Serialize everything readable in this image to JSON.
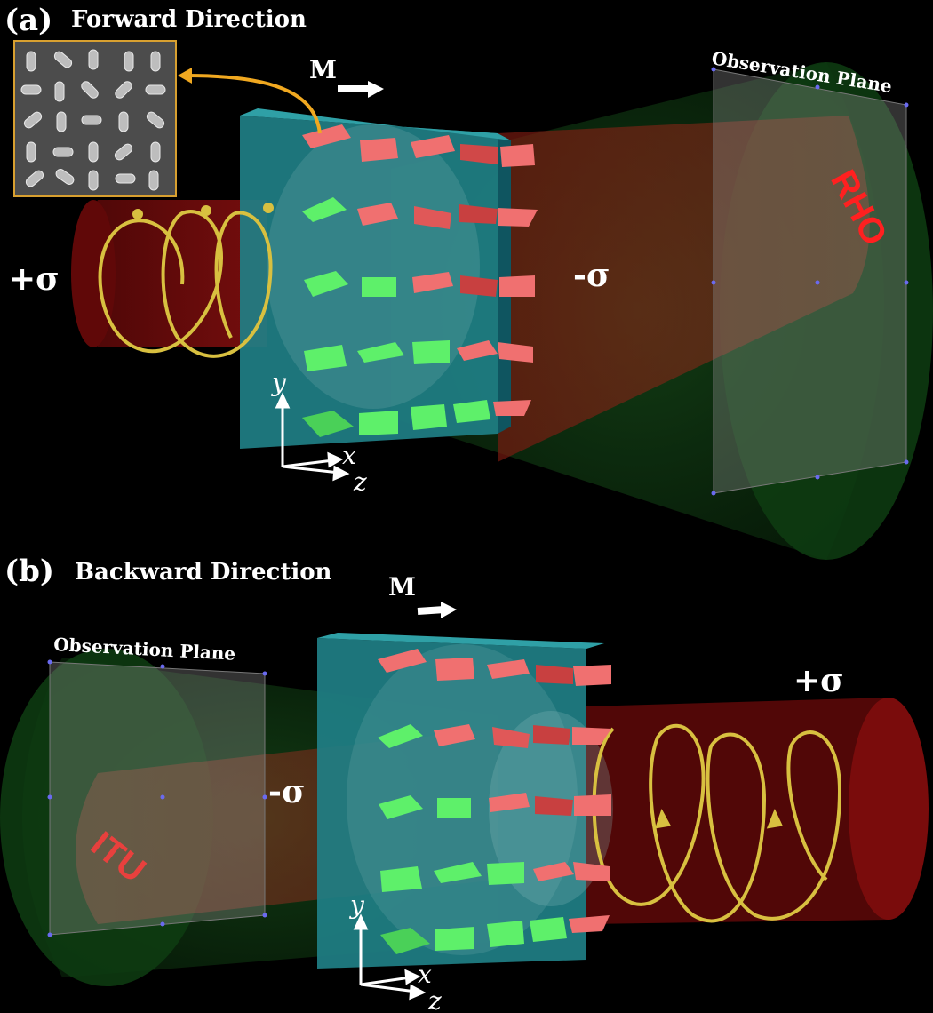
{
  "panel_a": {
    "label": "(a)",
    "title": "Forward Direction",
    "magnet": "M",
    "observation_plane": "Observation Plane",
    "incident_polarization": "+σ",
    "output_polarization": "-σ",
    "hologram_text": "RHO",
    "axis_y": "y",
    "axis_x": "x",
    "axis_z": "z"
  },
  "panel_b": {
    "label": "(b)",
    "title": "Backward Direction",
    "magnet": "M",
    "observation_plane": "Observation Plane",
    "incident_polarization": "+σ",
    "output_polarization": "-σ",
    "hologram_text": "ITU",
    "axis_y": "y",
    "axis_x": "x",
    "axis_z": "z"
  },
  "colors": {
    "substrate": "#1f7f86",
    "pillar_red": "#f07070",
    "pillar_green": "#5ef06a",
    "beam_red": "#7a0c0c",
    "cone_green": "#0f3a12",
    "helix": "#d8c040",
    "hologram_red": "#ff2020"
  },
  "nanopillar_grid": [
    [
      "red",
      "red",
      "red",
      "red",
      "red"
    ],
    [
      "green",
      "red",
      "red",
      "red",
      "red"
    ],
    [
      "green",
      "green",
      "red",
      "red",
      "red"
    ],
    [
      "green",
      "green",
      "green",
      "red",
      "red"
    ],
    [
      "green",
      "green",
      "green",
      "green",
      "red"
    ]
  ]
}
